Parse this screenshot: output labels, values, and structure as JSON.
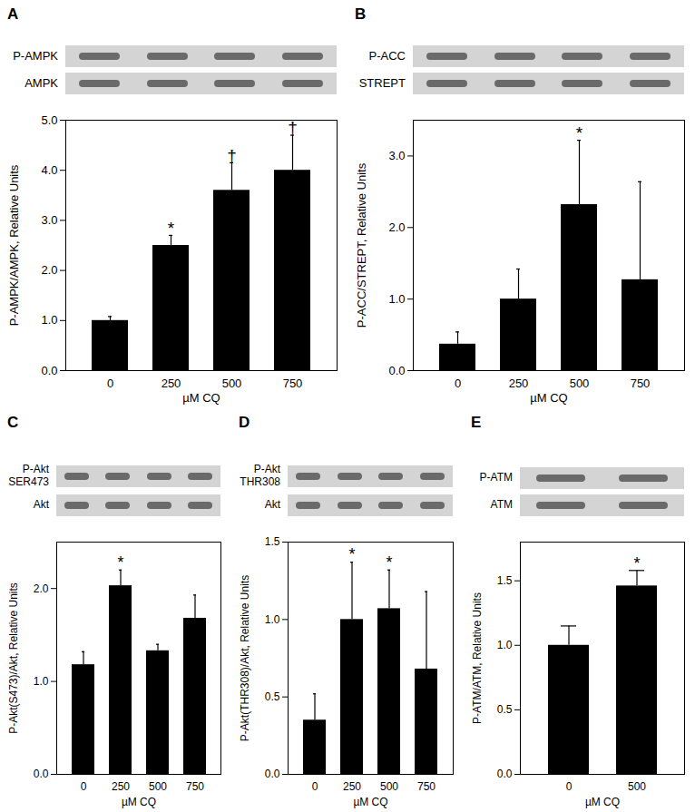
{
  "chart_data": [
    {
      "type": "bar",
      "title": "A",
      "blot_labels": [
        [
          "P-AMPK"
        ],
        [
          "AMPK"
        ]
      ],
      "categories": [
        "0",
        "250",
        "500",
        "750"
      ],
      "values": [
        1.0,
        2.5,
        3.6,
        4.0
      ],
      "errors": [
        0.08,
        0.2,
        0.55,
        0.7
      ],
      "significance": [
        null,
        "*",
        "†",
        "†"
      ],
      "color": "#000000",
      "x_label": "µM CQ",
      "y_label": "P-AMPK/AMPK, Relative Units",
      "ylim": [
        0,
        5
      ],
      "yticks": [
        {
          "value": 0,
          "label": "0.0"
        },
        {
          "value": 1,
          "label": "1.0"
        },
        {
          "value": 2,
          "label": "2.0"
        },
        {
          "value": 3,
          "label": "3.0"
        },
        {
          "value": 4,
          "label": "4.0"
        },
        {
          "value": 5,
          "label": "5.0"
        }
      ]
    },
    {
      "type": "bar",
      "title": "B",
      "blot_labels": [
        [
          "P-ACC"
        ],
        [
          "STREPT"
        ]
      ],
      "categories": [
        "0",
        "250",
        "500",
        "750"
      ],
      "values": [
        0.37,
        1.0,
        2.32,
        1.27
      ],
      "errors": [
        0.17,
        0.42,
        0.9,
        1.37
      ],
      "significance": [
        null,
        null,
        "*",
        null
      ],
      "color": "#000000",
      "x_label": "µM CQ",
      "y_label": "P-ACC/STREPT, Relative Units",
      "ylim": [
        0,
        3.5
      ],
      "yticks": [
        {
          "value": 0,
          "label": "0.0"
        },
        {
          "value": 1,
          "label": "1.0"
        },
        {
          "value": 2,
          "label": "2.0"
        },
        {
          "value": 3,
          "label": "3.0"
        }
      ]
    },
    {
      "type": "bar",
      "title": "C",
      "blot_labels": [
        [
          "P-Akt",
          "SER473"
        ],
        [
          "Akt"
        ]
      ],
      "categories": [
        "0",
        "250",
        "500",
        "750"
      ],
      "values": [
        1.18,
        2.03,
        1.33,
        1.68
      ],
      "errors": [
        0.14,
        0.17,
        0.07,
        0.25
      ],
      "significance": [
        null,
        "*",
        null,
        null
      ],
      "color": "#000000",
      "x_label": "µM CQ",
      "y_label": "P-Akt(S473)/Akt, Relative Units",
      "ylim": [
        0,
        2.5
      ],
      "yticks": [
        {
          "value": 0,
          "label": "0.0"
        },
        {
          "value": 1,
          "label": "1.0"
        },
        {
          "value": 2,
          "label": "2.0"
        }
      ]
    },
    {
      "type": "bar",
      "title": "D",
      "blot_labels": [
        [
          "P-Akt",
          "THR308"
        ],
        [
          "Akt"
        ]
      ],
      "categories": [
        "0",
        "250",
        "500",
        "750"
      ],
      "values": [
        0.35,
        1.0,
        1.07,
        0.68
      ],
      "errors": [
        0.17,
        0.37,
        0.25,
        0.5
      ],
      "significance": [
        null,
        "*",
        "*",
        null
      ],
      "color": "#000000",
      "x_label": "µM CQ",
      "y_label": "P-Akt(THR308)/Akt, Relative Units",
      "ylim": [
        0,
        1.5
      ],
      "yticks": [
        {
          "value": 0,
          "label": "0.0"
        },
        {
          "value": 0.5,
          "label": "0.5"
        },
        {
          "value": 1,
          "label": "1.0"
        },
        {
          "value": 1.5,
          "label": "1.5"
        }
      ]
    },
    {
      "type": "bar",
      "title": "E",
      "blot_labels": [
        [
          "P-ATM"
        ],
        [
          "ATM"
        ]
      ],
      "categories": [
        "0",
        "500"
      ],
      "values": [
        1.0,
        1.46
      ],
      "errors": [
        0.15,
        0.12
      ],
      "significance": [
        null,
        "*"
      ],
      "color": "#000000",
      "x_label": "µM CQ",
      "y_label": "P-ATM/ATM, Relative Units",
      "ylim": [
        0,
        1.8
      ],
      "yticks": [
        {
          "value": 0,
          "label": "0.0"
        },
        {
          "value": 0.5,
          "label": "0.5"
        },
        {
          "value": 1,
          "label": "1.0"
        },
        {
          "value": 1.5,
          "label": "1.5"
        }
      ]
    }
  ]
}
